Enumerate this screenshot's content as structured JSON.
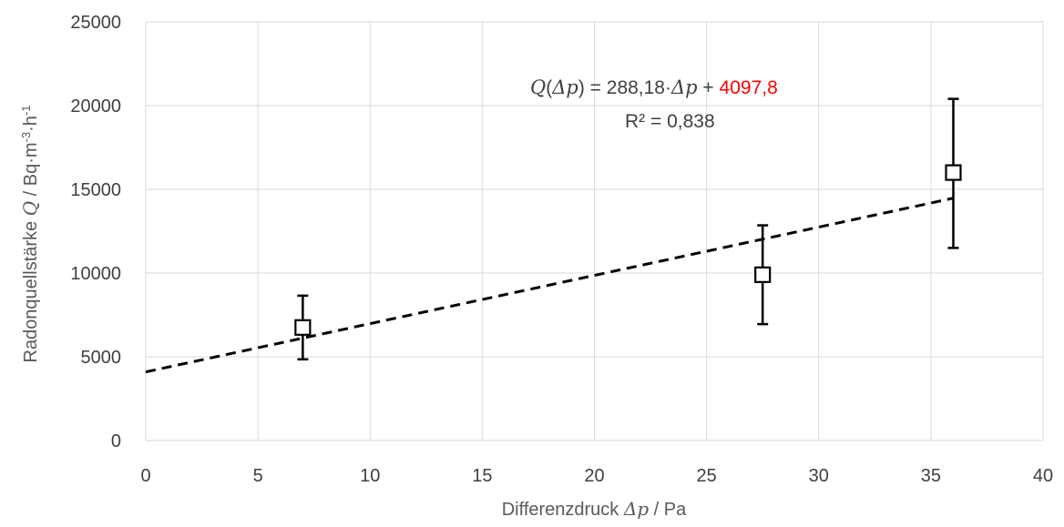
{
  "chart_data": {
    "type": "scatter",
    "title": "",
    "xlabel": {
      "prefix": "Differenzdruck ",
      "symbol": "Δp",
      "suffix": " / Pa"
    },
    "ylabel": {
      "prefix": "Radonquellstärke ",
      "symbol": "Q",
      "unit_main": " / Bq·m",
      "sup1": "-3",
      "mid": "·h",
      "sup2": "-1"
    },
    "xlim": [
      0,
      40
    ],
    "ylim": [
      0,
      25000
    ],
    "x_ticks": [
      0,
      5,
      10,
      15,
      20,
      25,
      30,
      35,
      40
    ],
    "y_ticks": [
      0,
      5000,
      10000,
      15000,
      20000,
      25000
    ],
    "x_tick_labels": [
      "0",
      "5",
      "10",
      "15",
      "20",
      "25",
      "30",
      "35",
      "40"
    ],
    "y_tick_labels": [
      "0",
      "5000",
      "10000",
      "15000",
      "20000",
      "25000"
    ],
    "grid": true,
    "points": [
      {
        "x": 7.0,
        "y": 6750,
        "err_low": 4850,
        "err_high": 8650
      },
      {
        "x": 27.5,
        "y": 9900,
        "err_low": 6950,
        "err_high": 12850
      },
      {
        "x": 36.0,
        "y": 16000,
        "err_low": 11500,
        "err_high": 20400
      }
    ],
    "trendline": {
      "slope": 288.18,
      "intercept": 4097.8,
      "x_range": [
        0,
        36.0
      ],
      "style": "dashed"
    },
    "equation": {
      "lhs_symbol": "Q",
      "lhs_arg": "Δp",
      "equals": " = 288,18·",
      "slope_symbol": "Δp",
      "plus": " + ",
      "intercept_text": "4097,8",
      "intercept_color": "#ff0000",
      "r2_text": "R² = 0,838"
    }
  },
  "colors": {
    "grid": "#d9d9d9",
    "marker_edge": "#000000",
    "marker_fill": "#ffffff",
    "trend": "#000000",
    "tick_text": "#404040",
    "label_text": "#595959"
  }
}
